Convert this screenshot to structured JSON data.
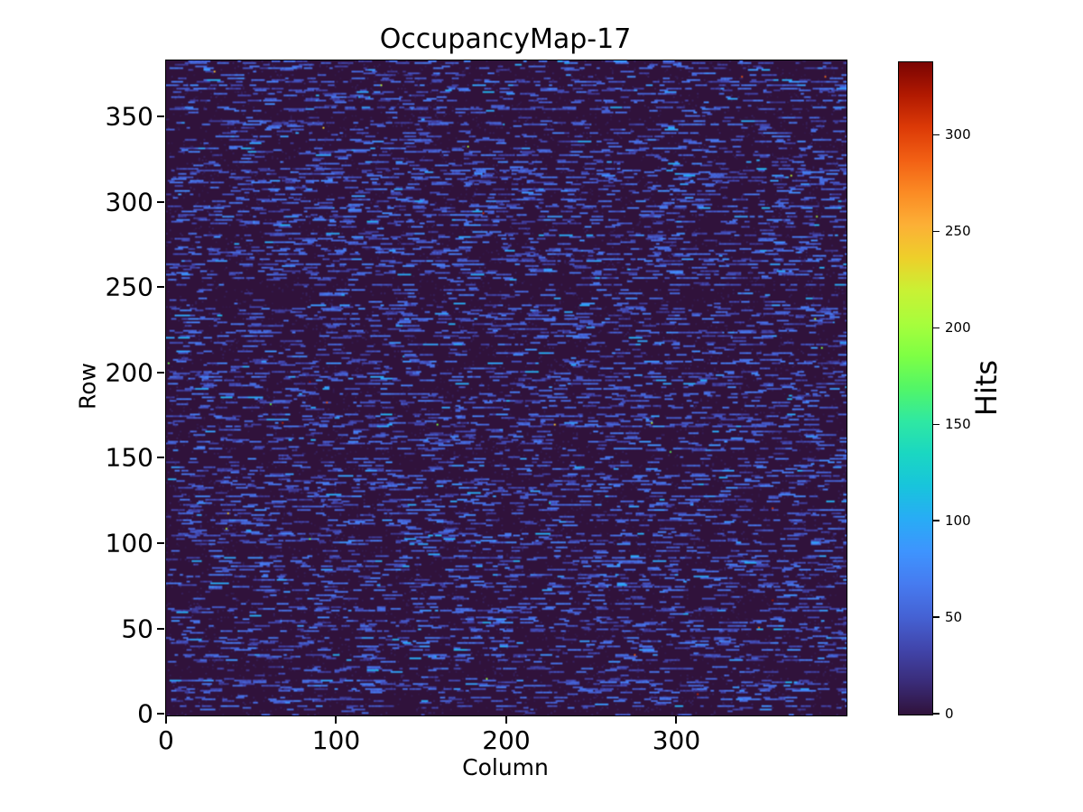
{
  "figure": {
    "title": "OccupancyMap-17",
    "background_color": "#ffffff",
    "text_color": "#000000"
  },
  "axes": {
    "xlabel": "Column",
    "ylabel": "Row",
    "x_tick_labels": [
      "0",
      "100",
      "200",
      "300"
    ],
    "y_tick_labels": [
      "0",
      "50",
      "100",
      "150",
      "200",
      "250",
      "300",
      "350"
    ]
  },
  "colorbar": {
    "label": "Hits",
    "tick_labels": [
      "0",
      "50",
      "100",
      "150",
      "200",
      "250",
      "300"
    ]
  },
  "chart_data": {
    "type": "heatmap",
    "title": "OccupancyMap-17",
    "xlabel": "Column",
    "ylabel": "Row",
    "colorbar_label": "Hits",
    "n_cols": 400,
    "n_rows": 384,
    "x_extent": [
      -0.5,
      399.5
    ],
    "y_extent": [
      -0.5,
      383.5
    ],
    "x_ticks": [
      0,
      100,
      200,
      300
    ],
    "y_ticks": [
      0,
      50,
      100,
      150,
      200,
      250,
      300,
      350
    ],
    "colorbar_ticks": [
      0,
      50,
      100,
      150,
      200,
      250,
      300
    ],
    "vmin": 0,
    "vmax": 338,
    "colormap": "turbo",
    "colormap_stops": [
      [
        0.0,
        "#30123b"
      ],
      [
        0.05,
        "#3a2c79"
      ],
      [
        0.1,
        "#4145ab"
      ],
      [
        0.15,
        "#4562d4"
      ],
      [
        0.2,
        "#467bf0"
      ],
      [
        0.25,
        "#3e94fe"
      ],
      [
        0.3,
        "#28acf5"
      ],
      [
        0.35,
        "#18c4dc"
      ],
      [
        0.4,
        "#1ad7c2"
      ],
      [
        0.45,
        "#2fe8a2"
      ],
      [
        0.5,
        "#52f667"
      ],
      [
        0.55,
        "#7eff44"
      ],
      [
        0.6,
        "#a8fd3c"
      ],
      [
        0.65,
        "#c9f134"
      ],
      [
        0.7,
        "#eecf2a"
      ],
      [
        0.75,
        "#fcb036"
      ],
      [
        0.8,
        "#fb8b24"
      ],
      [
        0.85,
        "#f26014"
      ],
      [
        0.9,
        "#dc3a07"
      ],
      [
        0.95,
        "#b11901"
      ],
      [
        1.0,
        "#7a0403"
      ]
    ],
    "pattern": {
      "description": "Sparse pixel-detector occupancy map: near-zero (dark purple) background with short horizontal dashed streaks of low hit counts (blue, ~20-100 hits) along rows, alternating dense and quiet rows, plus rare isolated hot pixels up to ~338 hits.",
      "seed": 1717,
      "background_value": 0,
      "background_noise_prob": 0.05,
      "background_noise_value_range": [
        3,
        12
      ],
      "row_dense_prob": 0.38,
      "row_medium_prob": 0.42,
      "dashes_per_dense_row": [
        20,
        42
      ],
      "dashes_per_medium_row": [
        6,
        20
      ],
      "dashes_per_quiet_row": [
        0,
        3
      ],
      "dash_length_range": [
        2,
        9
      ],
      "dash_value_range": [
        24,
        66
      ],
      "bright_dash_prob": 0.1,
      "bright_dash_value_range": [
        65,
        105
      ],
      "hot_pixel_count": 30,
      "hot_pixel_value_range": [
        130,
        338
      ]
    }
  }
}
